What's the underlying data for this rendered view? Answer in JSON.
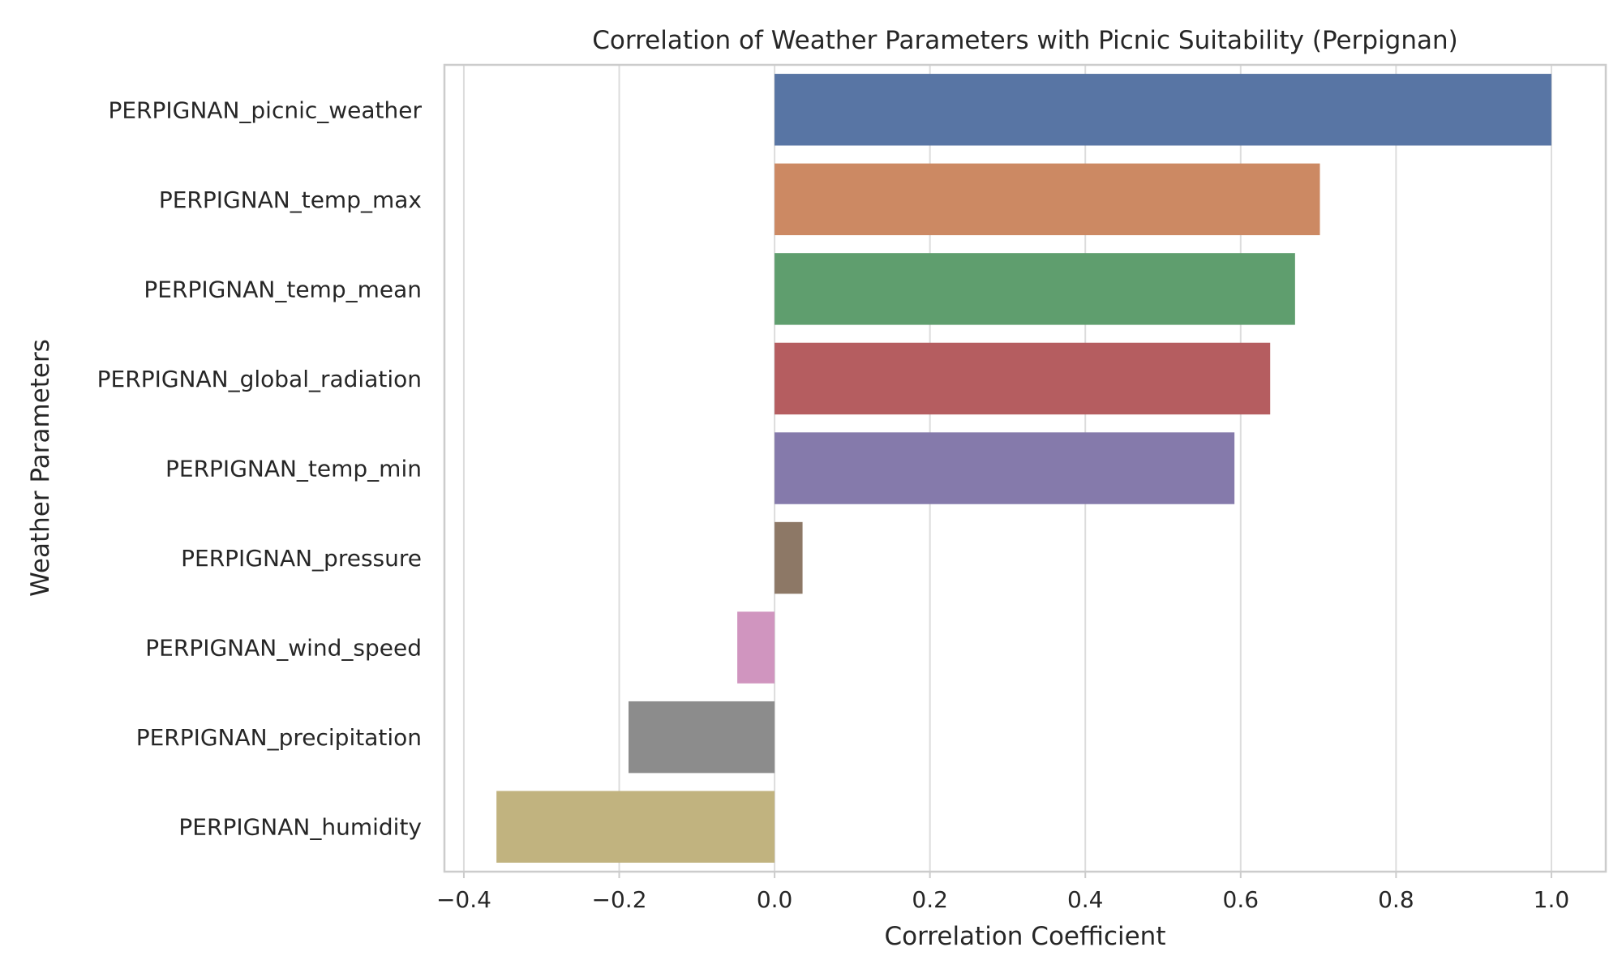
{
  "chart_data": {
    "type": "bar",
    "orientation": "horizontal",
    "title": "Correlation of Weather Parameters with Picnic Suitability (Perpignan)",
    "xlabel": "Correlation Coefficient",
    "ylabel": "Weather Parameters",
    "xlim": [
      -0.425,
      1.07
    ],
    "xticks": [
      -0.4,
      -0.2,
      0.0,
      0.2,
      0.4,
      0.6,
      0.8,
      1.0
    ],
    "xtick_labels": [
      "−0.4",
      "−0.2",
      "0.0",
      "0.2",
      "0.4",
      "0.6",
      "0.8",
      "1.0"
    ],
    "grid": true,
    "categories": [
      "PERPIGNAN_picnic_weather",
      "PERPIGNAN_temp_max",
      "PERPIGNAN_temp_mean",
      "PERPIGNAN_global_radiation",
      "PERPIGNAN_temp_min",
      "PERPIGNAN_pressure",
      "PERPIGNAN_wind_speed",
      "PERPIGNAN_precipitation",
      "PERPIGNAN_humidity"
    ],
    "values": [
      1.0,
      0.702,
      0.67,
      0.638,
      0.592,
      0.036,
      -0.048,
      -0.188,
      -0.358
    ],
    "colors": [
      "#5875a4",
      "#cc8963",
      "#5f9e6e",
      "#b55d60",
      "#857aab",
      "#8d7866",
      "#d095bf",
      "#8c8c8c",
      "#c1b37f"
    ]
  }
}
